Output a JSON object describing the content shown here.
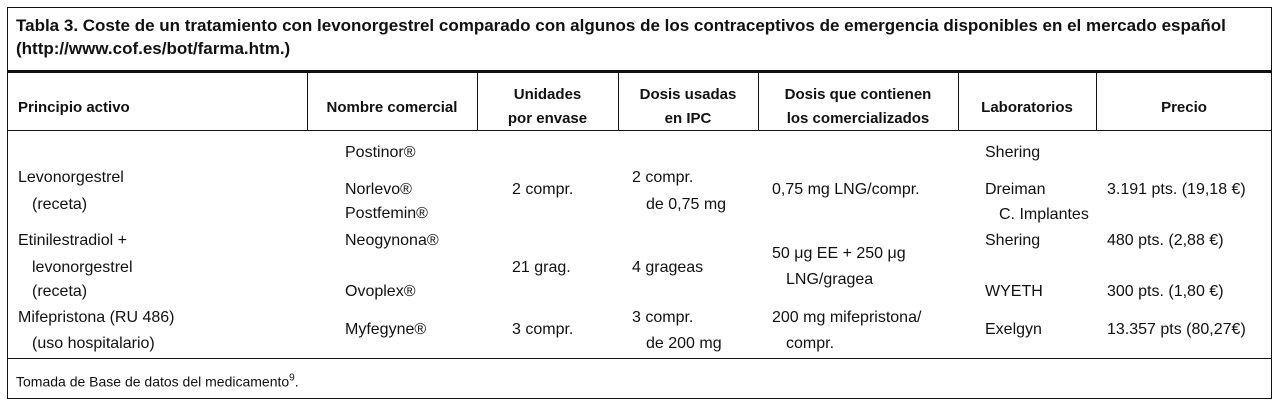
{
  "title": "Tabla 3. Coste de un tratamiento con levonorgestrel comparado con algunos de los contraceptivos de emergencia disponibles en el mercado español (http://www.cof.es/bot/farma.htm.)",
  "table": {
    "headers": [
      [
        "Principio activo"
      ],
      [
        "Nombre comercial"
      ],
      [
        "Unidades",
        "por envase"
      ],
      [
        "Dosis usadas",
        "en IPC"
      ],
      [
        "Dosis que contienen",
        "los comercializados"
      ],
      [
        "Laboratorios"
      ],
      [
        "Precio"
      ]
    ],
    "rows": [
      [
        [
          "Levonorgestrel",
          "(receta)"
        ],
        [
          "Postinor®",
          "Norlevo®",
          "Postfemin®"
        ],
        [
          "2 compr."
        ],
        [
          "2 compr.",
          "de 0,75 mg"
        ],
        [
          "0,75 mg LNG/compr."
        ],
        [
          "Shering",
          "Dreiman",
          "C. Implantes"
        ],
        [
          "3.191 pts. (19,18 €)"
        ]
      ],
      [
        [
          "Etinilestradiol +",
          "levonorgestrel",
          "(receta)"
        ],
        [
          "Neogynona®",
          "Ovoplex®"
        ],
        [
          "21 grag."
        ],
        [
          "4 grageas"
        ],
        [
          "50 μg EE + 250 μg",
          "LNG/gragea"
        ],
        [
          "Shering",
          "WYETH"
        ],
        [
          "480 pts. (2,88 €)",
          "300 pts. (1,80 €)"
        ]
      ],
      [
        [
          "Mifepristona (RU 486)",
          "(uso hospitalario)"
        ],
        [
          "Myfegyne®"
        ],
        [
          "3 compr."
        ],
        [
          "3 compr.",
          "de 200 mg"
        ],
        [
          "200 mg mifepristona/",
          "compr."
        ],
        [
          "Exelgyn"
        ],
        [
          "13.357 pts (80,27€)"
        ]
      ]
    ]
  },
  "footnote": {
    "text": "Tomada de Base de datos del medicamento",
    "ref": "9",
    "end": "."
  }
}
